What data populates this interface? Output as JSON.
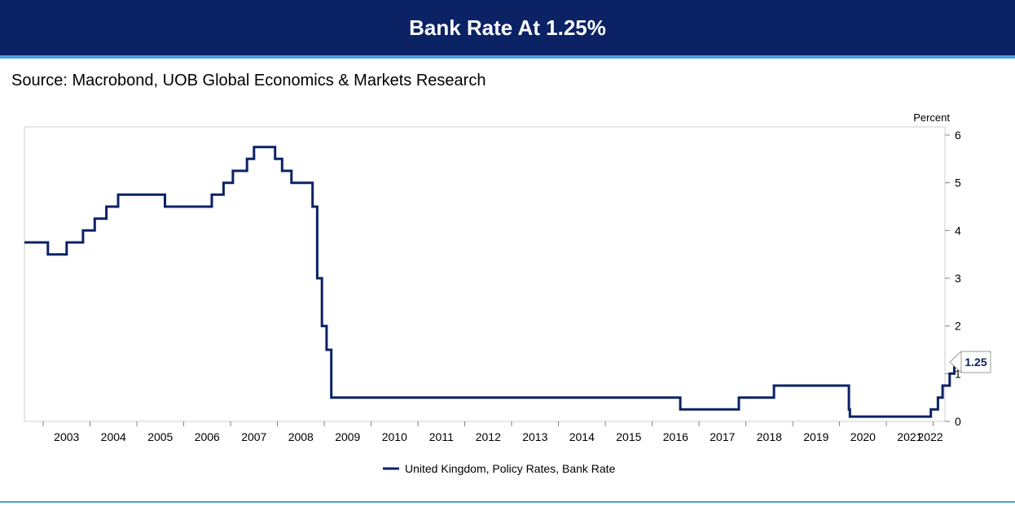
{
  "header": {
    "title": "Bank Rate At 1.25%"
  },
  "source": "Source: Macrobond, UOB Global Economics & Markets Research",
  "colors": {
    "banner": "#0b2265",
    "accent": "#4aa3df",
    "series": "#0b2265"
  },
  "chart_data": {
    "type": "line",
    "title": "Bank Rate At 1.25%",
    "ylabel": "Percent",
    "xlabel": "",
    "y_axis_side": "right",
    "ylim": [
      0,
      6
    ],
    "yticks": [
      0,
      1,
      2,
      3,
      4,
      5,
      6
    ],
    "xlim": [
      2002.6,
      2022.25
    ],
    "year_labels": [
      "2003",
      "2004",
      "2005",
      "2006",
      "2007",
      "2008",
      "2009",
      "2010",
      "2011",
      "2012",
      "2013",
      "2014",
      "2015",
      "2016",
      "2017",
      "2018",
      "2019",
      "2020",
      "2021",
      "2022"
    ],
    "legend_position": "bottom-center",
    "grid": false,
    "last_value_label": "1.25",
    "series": [
      {
        "name": "United Kingdom, Policy Rates, Bank Rate",
        "step": true,
        "x": [
          2002.6,
          2003.1,
          2003.5,
          2003.85,
          2004.1,
          2004.35,
          2004.6,
          2005.6,
          2006.6,
          2006.85,
          2007.05,
          2007.35,
          2007.5,
          2007.95,
          2008.1,
          2008.3,
          2008.75,
          2008.85,
          2008.95,
          2009.05,
          2009.15,
          2016.6,
          2017.85,
          2018.6,
          2020.2,
          2020.22,
          2021.95,
          2022.1,
          2022.2,
          2022.35,
          2022.45,
          2022.55
        ],
        "y": [
          3.75,
          3.5,
          3.75,
          4.0,
          4.25,
          4.5,
          4.75,
          4.5,
          4.75,
          5.0,
          5.25,
          5.5,
          5.75,
          5.5,
          5.25,
          5.0,
          4.5,
          3.0,
          2.0,
          1.5,
          0.5,
          0.25,
          0.5,
          0.75,
          0.25,
          0.1,
          0.25,
          0.5,
          0.75,
          1.0,
          1.25,
          1.25
        ]
      }
    ]
  }
}
